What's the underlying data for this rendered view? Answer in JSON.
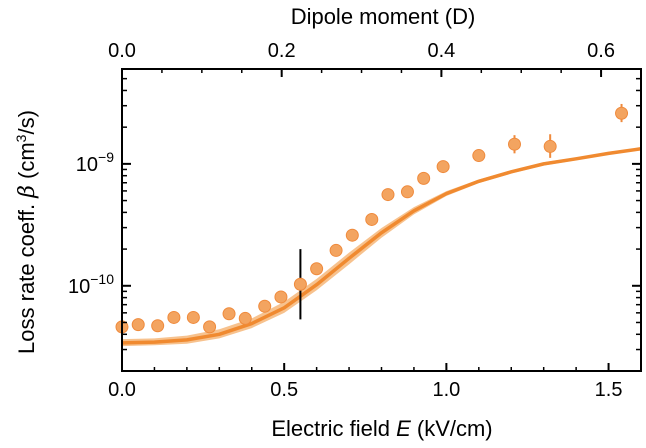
{
  "chart_data": {
    "type": "scatter",
    "xlabel_bottom": {
      "prefix": "Electric field ",
      "var": "E",
      "suffix": " (kV/cm)"
    },
    "xlabel_top": "Dipole moment (D)",
    "ylabel": {
      "prefix": "Loss rate coeff. ",
      "var": "β",
      "suffix_pre": " (cm",
      "sup": "3",
      "suffix_post": "/s)"
    },
    "xlim": [
      0.0,
      1.6
    ],
    "ylim": [
      2e-11,
      6e-09
    ],
    "y_scale": "log",
    "x_ticks": [
      {
        "value": 0.0,
        "label": "0.0"
      },
      {
        "value": 0.5,
        "label": "0.5"
      },
      {
        "value": 1.0,
        "label": "1.0"
      },
      {
        "value": 1.5,
        "label": "1.5"
      }
    ],
    "top_ticks": [
      {
        "value": 0.0,
        "label": "0.0"
      },
      {
        "value": 0.2,
        "label": "0.2"
      },
      {
        "value": 0.4,
        "label": "0.4"
      },
      {
        "value": 0.6,
        "label": "0.6"
      }
    ],
    "top_axis_max_dipole": 0.65,
    "y_major_ticks": [
      {
        "value": 1e-10,
        "base": "10",
        "exp": "−10"
      },
      {
        "value": 1e-09,
        "base": "10",
        "exp": "−9"
      }
    ],
    "y_minor_ticks": [
      2e-11,
      3e-11,
      4e-11,
      5e-11,
      6e-11,
      7e-11,
      8e-11,
      9e-11,
      2e-10,
      3e-10,
      4e-10,
      5e-10,
      6e-10,
      7e-10,
      8e-10,
      9e-10,
      2e-09,
      3e-09,
      4e-09,
      5e-09,
      6e-09
    ],
    "grid": false,
    "series": [
      {
        "kind": "points",
        "color": "#f3a460",
        "edge": "#ef8a3c",
        "points": [
          {
            "x": 0.0,
            "y": 4.6e-11
          },
          {
            "x": 0.05,
            "y": 4.8e-11
          },
          {
            "x": 0.11,
            "y": 4.7e-11
          },
          {
            "x": 0.16,
            "y": 5.5e-11
          },
          {
            "x": 0.22,
            "y": 5.5e-11
          },
          {
            "x": 0.27,
            "y": 4.6e-11
          },
          {
            "x": 0.33,
            "y": 5.9e-11
          },
          {
            "x": 0.38,
            "y": 5.4e-11
          },
          {
            "x": 0.44,
            "y": 6.8e-11
          },
          {
            "x": 0.49,
            "y": 8.1e-11
          },
          {
            "x": 0.55,
            "y": 1.03e-10,
            "yerr_low": 5.3e-11,
            "yerr_high": 2e-10,
            "err_color": "#000000"
          },
          {
            "x": 0.6,
            "y": 1.38e-10
          },
          {
            "x": 0.66,
            "y": 1.95e-10
          },
          {
            "x": 0.71,
            "y": 2.6e-10
          },
          {
            "x": 0.77,
            "y": 3.5e-10
          },
          {
            "x": 0.82,
            "y": 5.6e-10
          },
          {
            "x": 0.88,
            "y": 5.9e-10
          },
          {
            "x": 0.93,
            "y": 7.6e-10
          },
          {
            "x": 0.99,
            "y": 9.5e-10
          },
          {
            "x": 1.1,
            "y": 1.17e-09
          },
          {
            "x": 1.21,
            "y": 1.45e-09,
            "yerr_low": 1.22e-09,
            "yerr_high": 1.72e-09
          },
          {
            "x": 1.32,
            "y": 1.39e-09,
            "yerr_low": 1.12e-09,
            "yerr_high": 1.75e-09
          },
          {
            "x": 1.54,
            "y": 2.6e-09,
            "yerr_low": 2.2e-09,
            "yerr_high": 3.1e-09
          }
        ]
      },
      {
        "kind": "line",
        "color": "#f08a30",
        "band_color": "#f6b77a",
        "points": [
          {
            "x": 0.0,
            "y": 3.4e-11,
            "lo": 3.2e-11,
            "hi": 3.65e-11
          },
          {
            "x": 0.1,
            "y": 3.45e-11,
            "lo": 3.25e-11,
            "hi": 3.7e-11
          },
          {
            "x": 0.2,
            "y": 3.6e-11,
            "lo": 3.35e-11,
            "hi": 3.9e-11
          },
          {
            "x": 0.3,
            "y": 4e-11,
            "lo": 3.7e-11,
            "hi": 4.4e-11
          },
          {
            "x": 0.4,
            "y": 4.9e-11,
            "lo": 4.5e-11,
            "hi": 5.4e-11
          },
          {
            "x": 0.5,
            "y": 6.6e-11,
            "lo": 6e-11,
            "hi": 7.4e-11
          },
          {
            "x": 0.6,
            "y": 1.02e-10,
            "lo": 9.2e-11,
            "hi": 1.14e-10
          },
          {
            "x": 0.7,
            "y": 1.68e-10,
            "lo": 1.5e-10,
            "hi": 1.87e-10
          },
          {
            "x": 0.8,
            "y": 2.72e-10,
            "lo": 2.48e-10,
            "hi": 2.98e-10
          },
          {
            "x": 0.9,
            "y": 4.12e-10,
            "lo": 3.85e-10,
            "hi": 4.42e-10
          },
          {
            "x": 1.0,
            "y": 5.7e-10,
            "lo": 5.45e-10,
            "hi": 5.98e-10
          },
          {
            "x": 1.1,
            "y": 7.2e-10,
            "lo": 6.95e-10,
            "hi": 7.45e-10
          },
          {
            "x": 1.2,
            "y": 8.6e-10,
            "lo": 8.35e-10,
            "hi": 8.85e-10
          },
          {
            "x": 1.3,
            "y": 1e-09,
            "lo": 9.7e-10,
            "hi": 1.03e-09
          },
          {
            "x": 1.4,
            "y": 1.1e-09,
            "lo": 1.07e-09,
            "hi": 1.13e-09
          },
          {
            "x": 1.5,
            "y": 1.22e-09,
            "lo": 1.19e-09,
            "hi": 1.25e-09
          },
          {
            "x": 1.6,
            "y": 1.33e-09,
            "lo": 1.3e-09,
            "hi": 1.36e-09
          }
        ]
      }
    ]
  }
}
